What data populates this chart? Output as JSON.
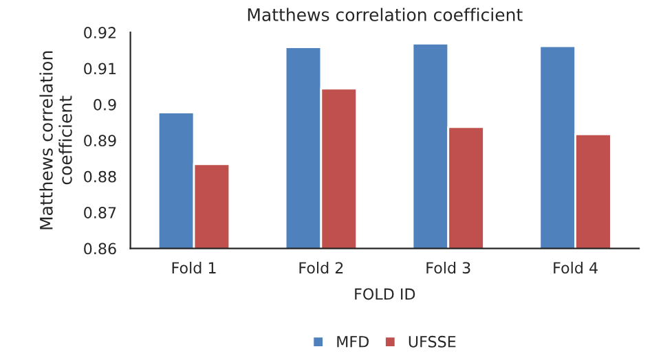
{
  "chart_data": {
    "type": "bar",
    "title": "Matthews correlation coefficient",
    "xlabel": "FOLD ID",
    "ylabel": "Matthews correlation coefficient",
    "categories": [
      "Fold 1",
      "Fold 2",
      "Fold 3",
      "Fold 4"
    ],
    "series": [
      {
        "name": "MFD",
        "color": "#4f81bd",
        "values": [
          0.8978,
          0.9159,
          0.9169,
          0.9162
        ]
      },
      {
        "name": "UFSSE",
        "color": "#c0504d",
        "values": [
          0.8834,
          0.9044,
          0.8937,
          0.8917
        ]
      }
    ],
    "ylim": [
      0.86,
      0.92
    ],
    "yticks": [
      0.86,
      0.87,
      0.88,
      0.89,
      0.9,
      0.91,
      0.92
    ],
    "grid": false,
    "legend": "bottom"
  }
}
